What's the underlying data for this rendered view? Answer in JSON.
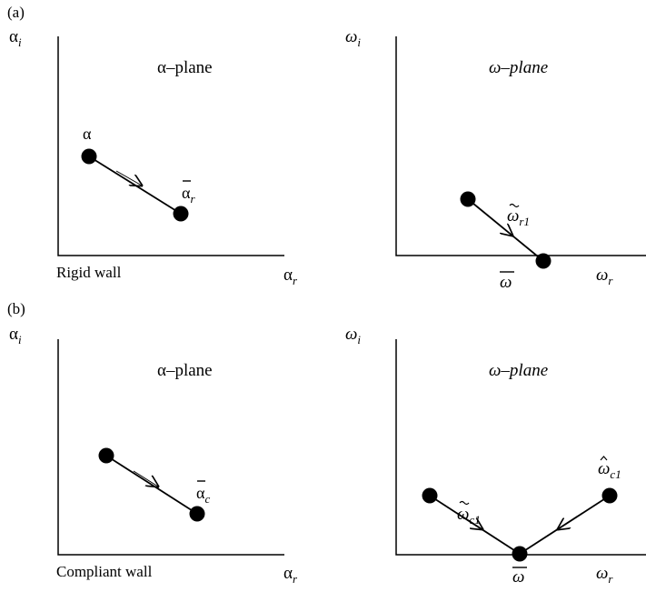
{
  "panel_labels": {
    "a": "(a)",
    "b": "(b)"
  },
  "colors": {
    "ink": "#000000",
    "background": "#ffffff"
  },
  "row_a": {
    "left": {
      "y_axis": {
        "sym": "α",
        "sub": "i"
      },
      "x_axis": {
        "sym": "α",
        "sub": "r"
      },
      "plane_label": "α–plane",
      "caption": "Rigid wall",
      "start_label": "α",
      "end_label": {
        "sym": "α",
        "sub": "r",
        "accent": "bar"
      }
    },
    "right": {
      "y_axis": {
        "sym": "ω",
        "sub": "i"
      },
      "x_axis": {
        "sym": "ω",
        "sub": "r"
      },
      "plane_label": "ω–plane",
      "path_label": {
        "sym": "ω",
        "sub": "r1",
        "accent": "tilde"
      },
      "end_label": {
        "sym": "ω",
        "accent": "bar"
      }
    }
  },
  "row_b": {
    "left": {
      "y_axis": {
        "sym": "α",
        "sub": "i"
      },
      "x_axis": {
        "sym": "α",
        "sub": "r"
      },
      "plane_label": "α–plane",
      "caption": "Compliant wall",
      "end_label": {
        "sym": "α",
        "sub": "c",
        "accent": "bar"
      }
    },
    "right": {
      "y_axis": {
        "sym": "ω",
        "sub": "i"
      },
      "x_axis": {
        "sym": "ω",
        "sub": "r"
      },
      "plane_label": "ω–plane",
      "left_path_label": {
        "sym": "ω",
        "sub": "c1",
        "accent": "tilde"
      },
      "right_path_label": {
        "sym": "ω",
        "sub": "c1",
        "accent": "hat"
      },
      "end_label": {
        "sym": "ω",
        "accent": "bar"
      }
    }
  }
}
